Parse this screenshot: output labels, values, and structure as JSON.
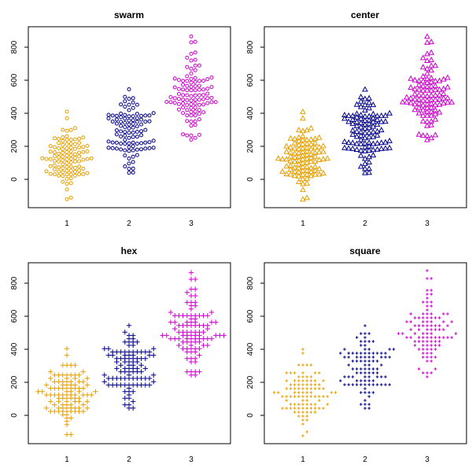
{
  "colors": {
    "1": "#E69F00",
    "2": "#00008B",
    "3": "#CC00CC"
  },
  "chart_data": [
    {
      "type": "scatter",
      "title": "swarm",
      "marker": "circle",
      "xlabel": "",
      "ylabel": "",
      "categories": [
        "1",
        "2",
        "3"
      ],
      "yticks": [
        "0",
        "200",
        "400",
        "600",
        "800"
      ],
      "ylim": [
        -170,
        920
      ],
      "series": [
        {
          "name": "1",
          "summary": {
            "min": -120,
            "median": 120,
            "max": 410,
            "n": 100
          }
        },
        {
          "name": "2",
          "summary": {
            "min": 40,
            "median": 290,
            "max": 545,
            "n": 100
          }
        },
        {
          "name": "3",
          "summary": {
            "min": 240,
            "median": 500,
            "max": 865,
            "n": 100
          }
        }
      ]
    },
    {
      "type": "scatter",
      "title": "center",
      "marker": "triangle",
      "xlabel": "",
      "ylabel": "",
      "categories": [
        "1",
        "2",
        "3"
      ],
      "yticks": [
        "0",
        "200",
        "400",
        "600",
        "800"
      ],
      "ylim": [
        -170,
        920
      ],
      "series": [
        {
          "name": "1",
          "summary": {
            "min": -120,
            "median": 120,
            "max": 410,
            "n": 100
          }
        },
        {
          "name": "2",
          "summary": {
            "min": 40,
            "median": 290,
            "max": 545,
            "n": 100
          }
        },
        {
          "name": "3",
          "summary": {
            "min": 240,
            "median": 500,
            "max": 865,
            "n": 100
          }
        }
      ]
    },
    {
      "type": "scatter",
      "title": "hex",
      "marker": "plus",
      "xlabel": "",
      "ylabel": "",
      "categories": [
        "1",
        "2",
        "3"
      ],
      "yticks": [
        "0",
        "200",
        "400",
        "600",
        "800"
      ],
      "ylim": [
        -170,
        920
      ],
      "series": [
        {
          "name": "1",
          "summary": {
            "min": -120,
            "median": 120,
            "max": 410,
            "n": 100
          }
        },
        {
          "name": "2",
          "summary": {
            "min": 40,
            "median": 290,
            "max": 545,
            "n": 100
          }
        },
        {
          "name": "3",
          "summary": {
            "min": 240,
            "median": 500,
            "max": 865,
            "n": 100
          }
        }
      ]
    },
    {
      "type": "scatter",
      "title": "square",
      "marker": "dot",
      "xlabel": "",
      "ylabel": "",
      "categories": [
        "1",
        "2",
        "3"
      ],
      "yticks": [
        "0",
        "200",
        "400",
        "600",
        "800"
      ],
      "ylim": [
        -170,
        920
      ],
      "series": [
        {
          "name": "1",
          "summary": {
            "min": -120,
            "median": 120,
            "max": 410,
            "n": 100
          }
        },
        {
          "name": "2",
          "summary": {
            "min": 40,
            "median": 290,
            "max": 545,
            "n": 100
          }
        },
        {
          "name": "3",
          "summary": {
            "min": 240,
            "median": 500,
            "max": 865,
            "n": 100
          }
        }
      ]
    }
  ]
}
